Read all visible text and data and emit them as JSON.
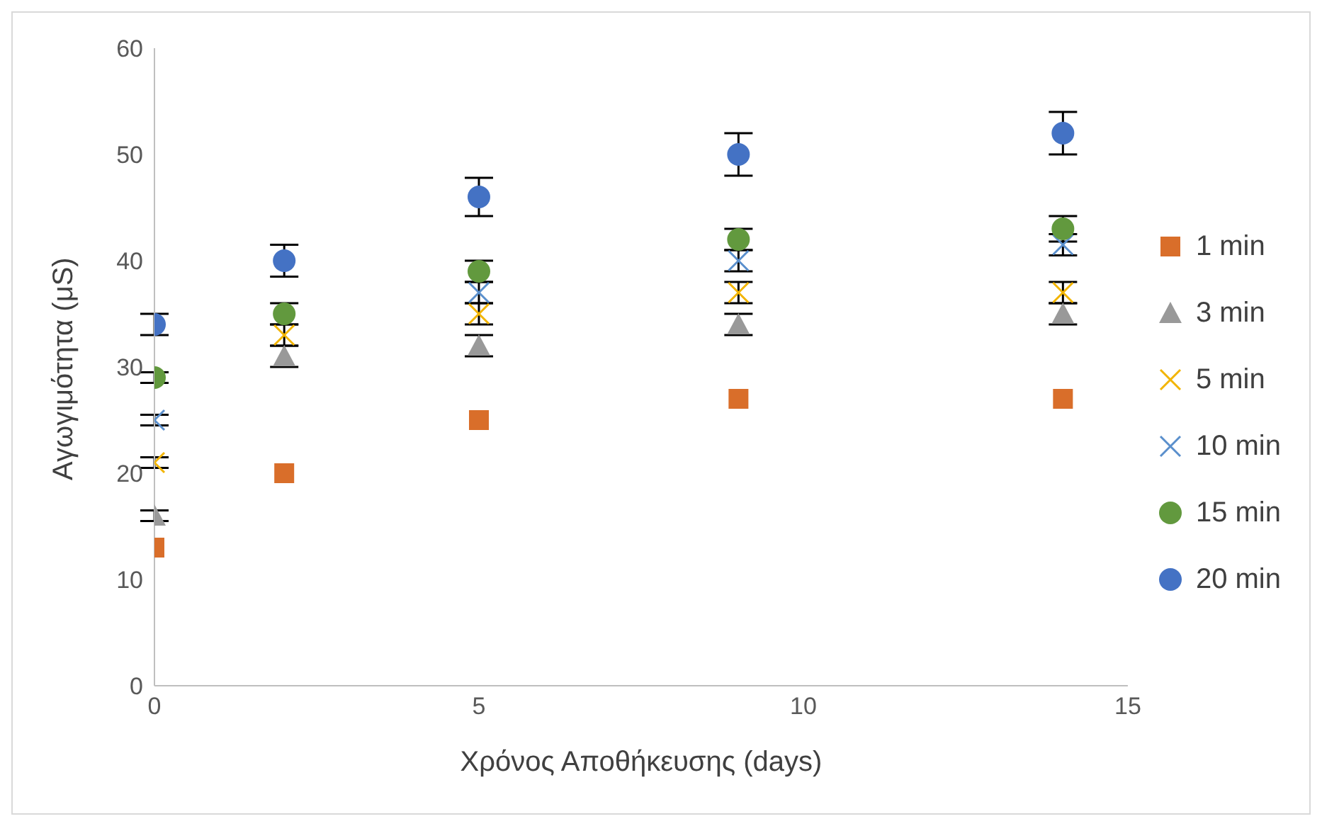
{
  "chart_data": {
    "type": "scatter",
    "xlabel": "Χρόνος Αποθήκευσης (days)",
    "ylabel": "Αγωγιμότητα (μS)",
    "x": [
      0,
      2,
      5,
      9,
      14
    ],
    "xlim": [
      0,
      15
    ],
    "xticks": [
      0,
      5,
      10,
      15
    ],
    "ylim": [
      0,
      60
    ],
    "yticks": [
      0,
      10,
      20,
      30,
      40,
      50,
      60
    ],
    "grid": false,
    "legend": "right",
    "series": [
      {
        "name": "1 min",
        "color": "#d96e2a",
        "marker": "square",
        "values": [
          13,
          20,
          25,
          27,
          27
        ]
      },
      {
        "name": "3 min",
        "color": "#999999",
        "marker": "triangle",
        "values": [
          16,
          31,
          32,
          34,
          35
        ],
        "errors": [
          0.5,
          1,
          1,
          1,
          1
        ]
      },
      {
        "name": "5 min",
        "color": "#f2b400",
        "marker": "cross",
        "values": [
          21,
          33,
          35,
          37,
          37
        ],
        "errors": [
          0.5,
          1,
          1,
          1,
          1
        ]
      },
      {
        "name": "10 min",
        "color": "#5a8fcc",
        "marker": "cross",
        "values": [
          25,
          null,
          37,
          40,
          41.5
        ],
        "errors": [
          0.5,
          null,
          1,
          1,
          1
        ]
      },
      {
        "name": "15 min",
        "color": "#62993e",
        "marker": "circle",
        "values": [
          29,
          35,
          39,
          42,
          43
        ],
        "errors": [
          0.5,
          1,
          1,
          1,
          1.2
        ]
      },
      {
        "name": "20 min",
        "color": "#4472c4",
        "marker": "circle",
        "values": [
          34,
          40,
          46,
          50,
          52
        ],
        "errors": [
          1,
          1.5,
          1.8,
          2,
          2
        ]
      }
    ]
  }
}
